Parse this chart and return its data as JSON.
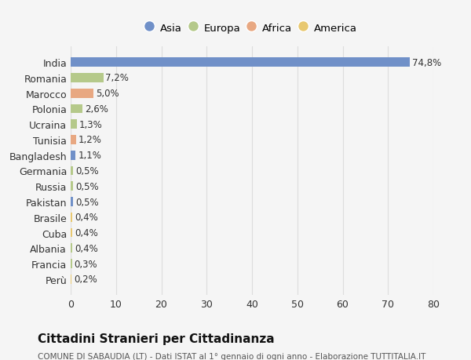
{
  "countries": [
    "India",
    "Romania",
    "Marocco",
    "Polonia",
    "Ucraina",
    "Tunisia",
    "Bangladesh",
    "Germania",
    "Russia",
    "Pakistan",
    "Brasile",
    "Cuba",
    "Albania",
    "Francia",
    "Perù"
  ],
  "values": [
    74.8,
    7.2,
    5.0,
    2.6,
    1.3,
    1.2,
    1.1,
    0.5,
    0.5,
    0.5,
    0.4,
    0.4,
    0.4,
    0.3,
    0.2
  ],
  "labels": [
    "74,8%",
    "7,2%",
    "5,0%",
    "2,6%",
    "1,3%",
    "1,2%",
    "1,1%",
    "0,5%",
    "0,5%",
    "0,5%",
    "0,4%",
    "0,4%",
    "0,4%",
    "0,3%",
    "0,2%"
  ],
  "colors": [
    "#7090c8",
    "#b5c98a",
    "#e8a882",
    "#b5c98a",
    "#b5c98a",
    "#e8a882",
    "#7090c8",
    "#b5c98a",
    "#b5c98a",
    "#7090c8",
    "#e8c870",
    "#e8c870",
    "#b5c98a",
    "#b5c98a",
    "#e8c870"
  ],
  "continent_colors": {
    "Asia": "#7090c8",
    "Europa": "#b5c98a",
    "Africa": "#e8a882",
    "America": "#e8c870"
  },
  "legend_labels": [
    "Asia",
    "Europa",
    "Africa",
    "America"
  ],
  "title": "Cittadini Stranieri per Cittadinanza",
  "subtitle": "COMUNE DI SABAUDIA (LT) - Dati ISTAT al 1° gennaio di ogni anno - Elaborazione TUTTITALIA.IT",
  "xlim": [
    0,
    80
  ],
  "xticks": [
    0,
    10,
    20,
    30,
    40,
    50,
    60,
    70,
    80
  ],
  "background_color": "#f5f5f5"
}
